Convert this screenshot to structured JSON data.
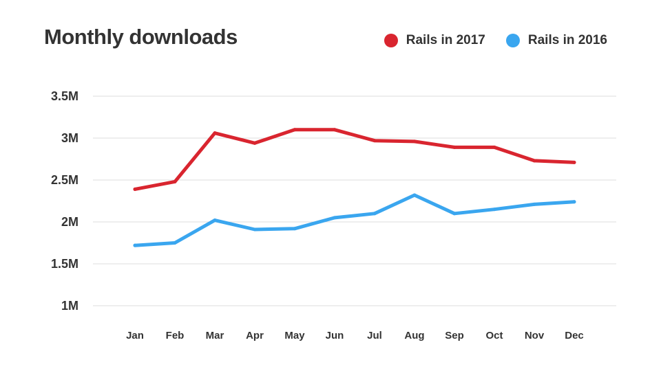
{
  "chart_data": {
    "type": "line",
    "title": "Monthly downloads",
    "categories": [
      "Jan",
      "Feb",
      "Mar",
      "Apr",
      "May",
      "Jun",
      "Jul",
      "Aug",
      "Sep",
      "Oct",
      "Nov",
      "Dec"
    ],
    "series": [
      {
        "name": "Rails in 2017",
        "color": "#d9252f",
        "values": [
          2.39,
          2.48,
          3.06,
          2.94,
          3.1,
          3.1,
          2.97,
          2.96,
          2.89,
          2.89,
          2.73,
          2.71
        ]
      },
      {
        "name": "Rails in 2016",
        "color": "#3aa6ef",
        "values": [
          1.72,
          1.75,
          2.02,
          1.91,
          1.92,
          2.05,
          2.1,
          2.32,
          2.1,
          2.15,
          2.21,
          2.24
        ]
      }
    ],
    "y_ticks": [
      {
        "value": 1.0,
        "label": "1M"
      },
      {
        "value": 1.5,
        "label": "1.5M"
      },
      {
        "value": 2.0,
        "label": "2M"
      },
      {
        "value": 2.5,
        "label": "2.5M"
      },
      {
        "value": 3.0,
        "label": "3M"
      },
      {
        "value": 3.5,
        "label": "3.5M"
      }
    ],
    "ylim": [
      1.0,
      3.5
    ],
    "grid": true,
    "legend_position": "top-right"
  }
}
